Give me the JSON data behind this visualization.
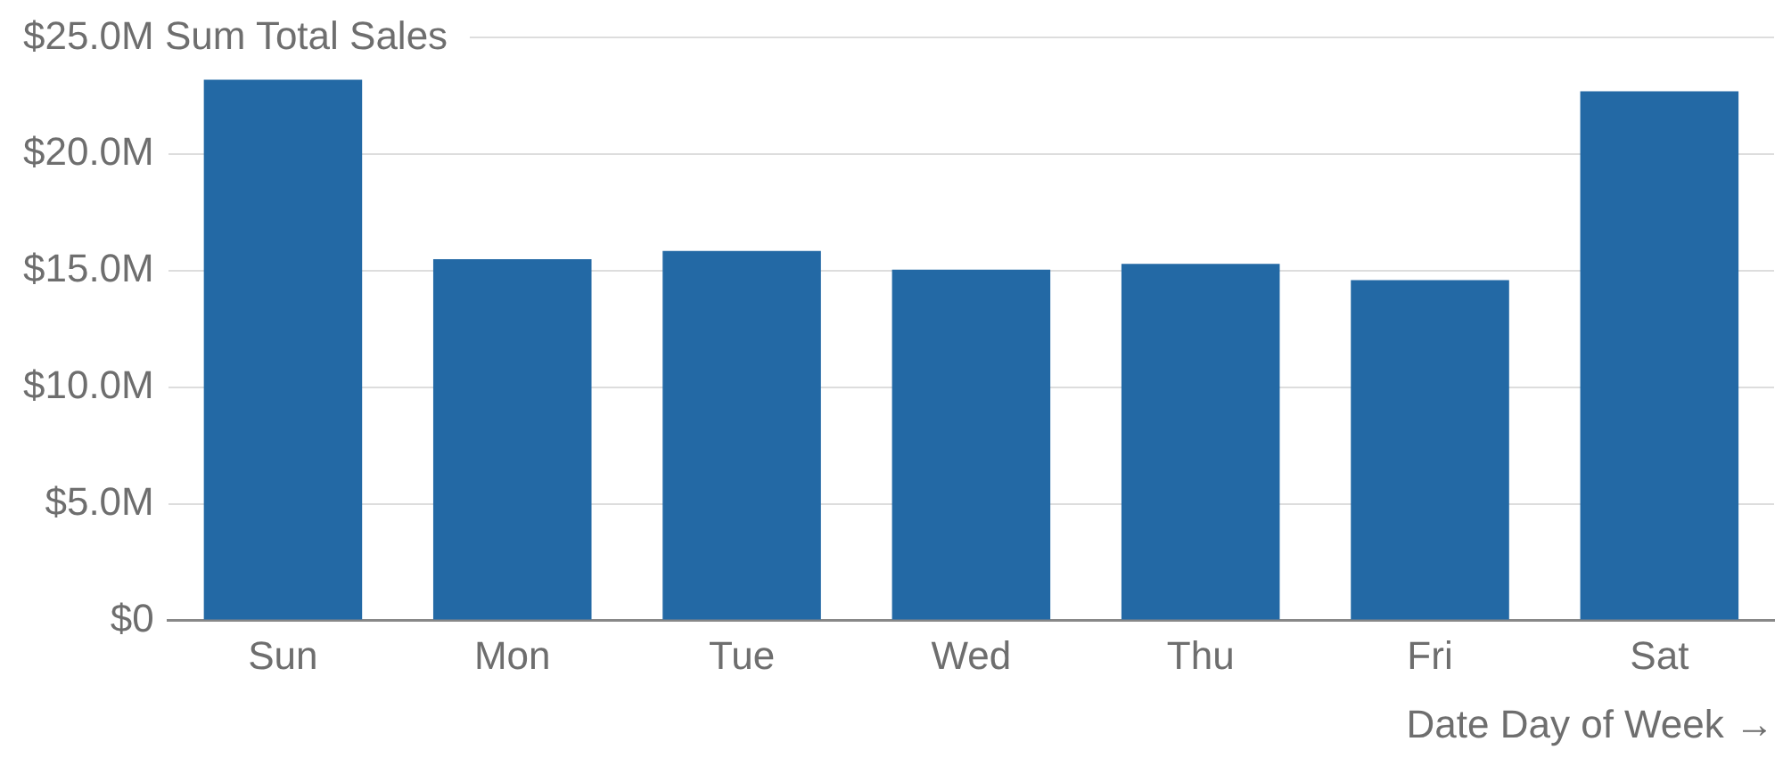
{
  "chart_data": {
    "type": "bar",
    "ylabel": "Sum Total Sales",
    "xlabel": "Date Day of Week →",
    "categories": [
      "Sun",
      "Mon",
      "Tue",
      "Wed",
      "Thu",
      "Fri",
      "Sat"
    ],
    "values": [
      23.2,
      15.5,
      15.85,
      15.05,
      15.3,
      14.6,
      22.7
    ],
    "color": "#2369a5",
    "ylim": [
      0,
      25
    ],
    "yticks": [
      {
        "value": 0,
        "label": "$0"
      },
      {
        "value": 5,
        "label": "$5.0M"
      },
      {
        "value": 10,
        "label": "$10.0M"
      },
      {
        "value": 15,
        "label": "$15.0M"
      },
      {
        "value": 20,
        "label": "$20.0M"
      },
      {
        "value": 25,
        "label": "$25.0M"
      }
    ],
    "grid": "y",
    "legend": false
  }
}
